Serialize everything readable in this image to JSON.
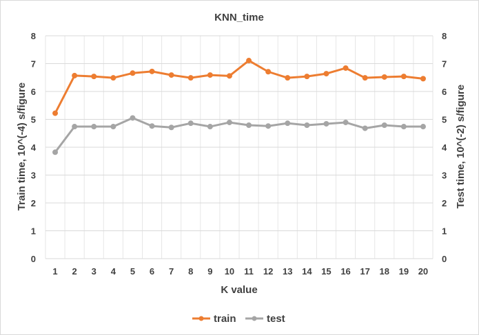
{
  "chart_data": {
    "type": "line",
    "title": "KNN_time",
    "xlabel": "K value",
    "ylabel_left": "Train time, 10^(-4) s/figure",
    "ylabel_right": "Test time, 10^(-2) s/figure",
    "x": [
      1,
      2,
      3,
      4,
      5,
      6,
      7,
      8,
      9,
      10,
      11,
      12,
      13,
      14,
      15,
      16,
      17,
      18,
      19,
      20
    ],
    "ylim_left": [
      0,
      8
    ],
    "ylim_right": [
      0,
      8
    ],
    "yticks": [
      0,
      1,
      2,
      3,
      4,
      5,
      6,
      7,
      8
    ],
    "grid": true,
    "legend_position": "bottom",
    "series": [
      {
        "name": "train",
        "axis": "left",
        "color": "#ed7d31",
        "values": [
          5.22,
          6.57,
          6.54,
          6.49,
          6.66,
          6.72,
          6.59,
          6.49,
          6.59,
          6.56,
          7.11,
          6.71,
          6.49,
          6.54,
          6.64,
          6.84,
          6.49,
          6.52,
          6.54,
          6.46
        ]
      },
      {
        "name": "test",
        "axis": "right",
        "color": "#a5a5a5",
        "values": [
          3.82,
          4.74,
          4.74,
          4.74,
          5.05,
          4.76,
          4.71,
          4.86,
          4.74,
          4.89,
          4.79,
          4.76,
          4.86,
          4.79,
          4.84,
          4.89,
          4.68,
          4.79,
          4.74,
          4.74
        ]
      }
    ]
  }
}
